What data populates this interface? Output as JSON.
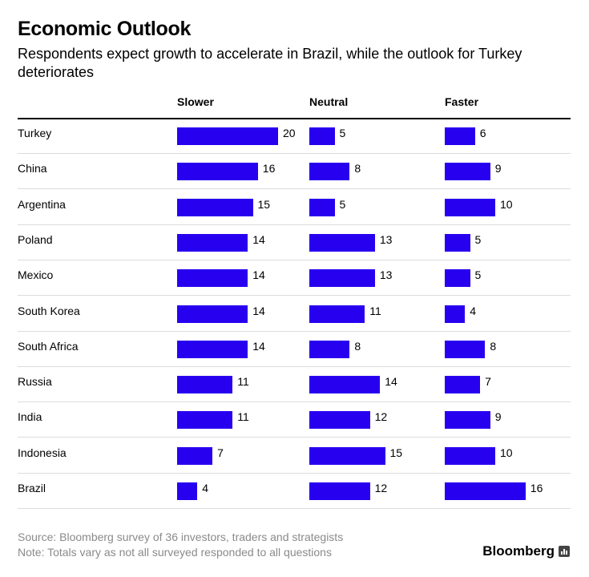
{
  "title": "Economic Outlook",
  "subtitle": "Respondents expect growth to accelerate in Brazil, while the outlook for Turkey deteriorates",
  "source_note": "Source: Bloomberg survey of 36 investors, traders and strategists",
  "totals_note": "Note: Totals vary as not all surveyed responded to all questions",
  "brand": "Bloomberg",
  "brand_icon": "bar-chart-icon",
  "bar_color": "#2800f0",
  "chart_data": {
    "type": "bar",
    "orientation": "horizontal",
    "grid": false,
    "categories": [
      "Turkey",
      "China",
      "Argentina",
      "Poland",
      "Mexico",
      "South Korea",
      "South Africa",
      "Russia",
      "India",
      "Indonesia",
      "Brazil"
    ],
    "series": [
      {
        "name": "Slower",
        "values": [
          20,
          16,
          15,
          14,
          14,
          14,
          14,
          11,
          11,
          7,
          4
        ]
      },
      {
        "name": "Neutral",
        "values": [
          5,
          8,
          5,
          13,
          13,
          11,
          8,
          14,
          12,
          15,
          12
        ]
      },
      {
        "name": "Faster",
        "values": [
          6,
          9,
          10,
          5,
          5,
          4,
          8,
          7,
          9,
          10,
          16
        ]
      }
    ]
  }
}
